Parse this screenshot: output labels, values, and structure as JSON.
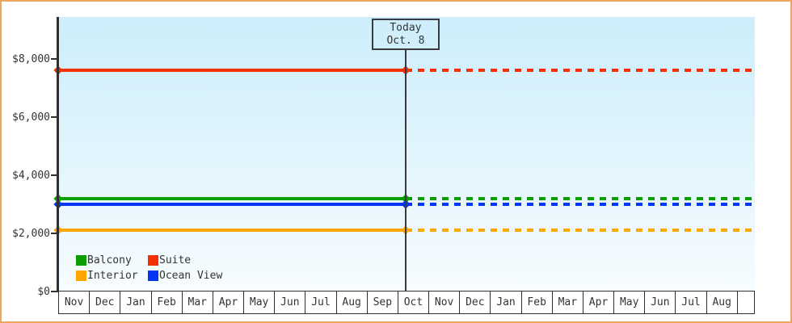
{
  "frame": {
    "border_color": "#efa45f"
  },
  "chart_data": {
    "type": "line",
    "title": "",
    "xlabel": "",
    "ylabel": "",
    "x_categories": [
      "Nov",
      "Dec",
      "Jan",
      "Feb",
      "Mar",
      "Apr",
      "May",
      "Jun",
      "Jul",
      "Aug",
      "Sep",
      "Oct",
      "Nov",
      "Dec",
      "Jan",
      "Feb",
      "Mar",
      "Apr",
      "May",
      "Jun",
      "Jul",
      "Aug"
    ],
    "y_tick_labels": [
      "$0",
      "$2,000",
      "$4,000",
      "$6,000",
      "$8,000"
    ],
    "y_tick_values": [
      0,
      2000,
      4000,
      6000,
      8000
    ],
    "ylim": [
      0,
      9440
    ],
    "grid": false,
    "today": {
      "label": "Today",
      "date": "Oct. 8",
      "x_index": 11.26
    },
    "series": [
      {
        "name": "Suite",
        "color": "#f53000",
        "value": 7600,
        "style": "solid-then-dotted"
      },
      {
        "name": "Balcony",
        "color": "#0a9e00",
        "value": 3200,
        "style": "solid-then-dotted"
      },
      {
        "name": "Ocean View",
        "color": "#0636f5",
        "value": 3000,
        "style": "solid-then-dotted"
      },
      {
        "name": "Interior",
        "color": "#ffa500",
        "value": 2100,
        "style": "solid-then-dotted"
      }
    ],
    "legend": [
      {
        "name": "Balcony",
        "color": "#0a9e00"
      },
      {
        "name": "Suite",
        "color": "#f53000"
      },
      {
        "name": "Interior",
        "color": "#ffa500"
      },
      {
        "name": "Ocean View",
        "color": "#0636f5"
      }
    ],
    "legend_position": "inside-bottom-left"
  }
}
